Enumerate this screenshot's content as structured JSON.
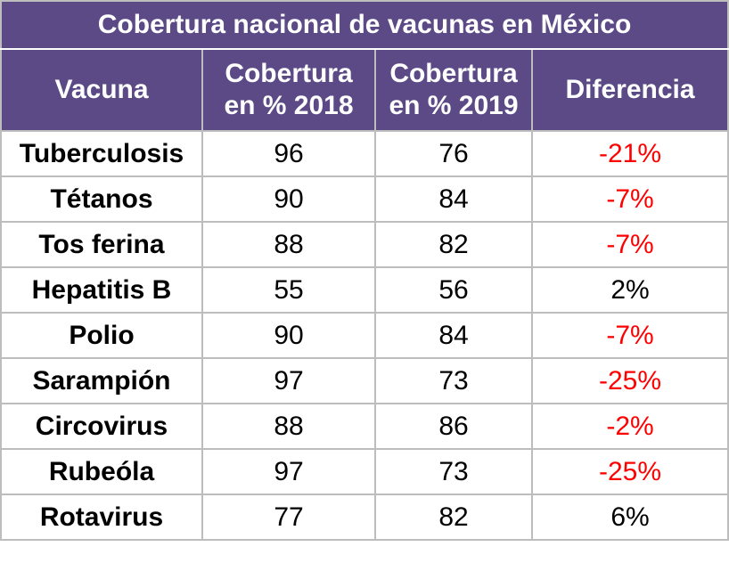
{
  "title": "Cobertura nacional de vacunas en México",
  "headers": {
    "vacuna": "Vacuna",
    "cob2018_line1": "Cobertura",
    "cob2018_line2": "en % 2018",
    "cob2019_line1": "Cobertura",
    "cob2019_line2": "en % 2019",
    "diferencia": "Diferencia"
  },
  "rows": [
    {
      "vacuna": "Tuberculosis",
      "y2018": "96",
      "y2019": "76",
      "diferencia": "-21%",
      "negative": true
    },
    {
      "vacuna": "Tétanos",
      "y2018": "90",
      "y2019": "84",
      "diferencia": "-7%",
      "negative": true
    },
    {
      "vacuna": "Tos ferina",
      "y2018": "88",
      "y2019": "82",
      "diferencia": "-7%",
      "negative": true
    },
    {
      "vacuna": "Hepatitis B",
      "y2018": "55",
      "y2019": "56",
      "diferencia": "2%",
      "negative": false
    },
    {
      "vacuna": "Polio",
      "y2018": "90",
      "y2019": "84",
      "diferencia": "-7%",
      "negative": true
    },
    {
      "vacuna": "Sarampión",
      "y2018": "97",
      "y2019": "73",
      "diferencia": "-25%",
      "negative": true
    },
    {
      "vacuna": "Circovirus",
      "y2018": "88",
      "y2019": "86",
      "diferencia": "-2%",
      "negative": true
    },
    {
      "vacuna": "Rubeóla",
      "y2018": "97",
      "y2019": "73",
      "diferencia": "-25%",
      "negative": true
    },
    {
      "vacuna": "Rotavirus",
      "y2018": "77",
      "y2019": "82",
      "diferencia": "6%",
      "negative": false
    }
  ],
  "colors": {
    "header_bg": "#5b4a86",
    "header_text": "#ffffff",
    "negative_text": "#ff0000",
    "positive_text": "#000000",
    "border": "#bdbdbd"
  }
}
